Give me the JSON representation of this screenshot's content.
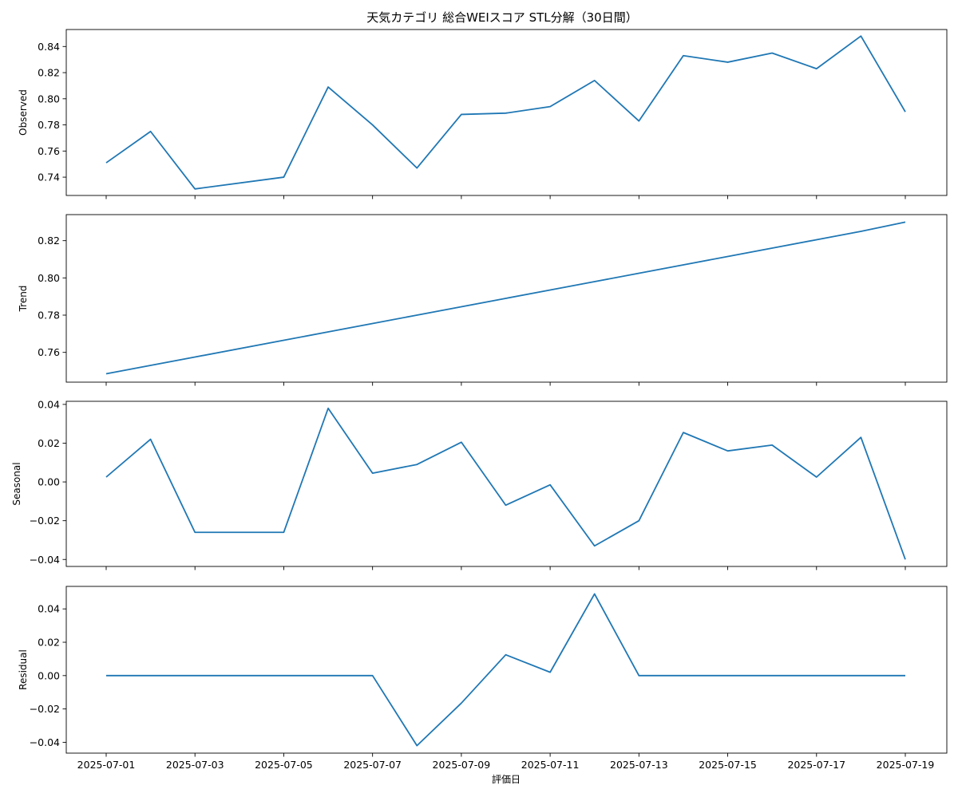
{
  "chart_data": {
    "type": "line",
    "title": "天気カテゴリ 総合WEIスコア STL分解（30日間）",
    "xlabel": "評価日",
    "x": [
      "2025-07-01",
      "2025-07-02",
      "2025-07-03",
      "2025-07-05",
      "2025-07-06",
      "2025-07-07",
      "2025-07-08",
      "2025-07-09",
      "2025-07-10",
      "2025-07-11",
      "2025-07-12",
      "2025-07-13",
      "2025-07-14",
      "2025-07-15",
      "2025-07-16",
      "2025-07-17",
      "2025-07-18",
      "2025-07-19"
    ],
    "x_ticks": [
      "2025-07-01",
      "2025-07-03",
      "2025-07-05",
      "2025-07-07",
      "2025-07-09",
      "2025-07-11",
      "2025-07-13",
      "2025-07-15",
      "2025-07-17",
      "2025-07-19"
    ],
    "line_color": "#1f77b4",
    "panels": [
      {
        "name": "observed",
        "ylabel": "Observed",
        "ylim": [
          0.726,
          0.853
        ],
        "yticks": [
          0.74,
          0.76,
          0.78,
          0.8,
          0.82,
          0.84
        ],
        "ytick_labels": [
          "0.74",
          "0.76",
          "0.78",
          "0.80",
          "0.82",
          "0.84"
        ],
        "values": [
          0.751,
          0.775,
          0.731,
          0.74,
          0.809,
          0.78,
          0.747,
          0.788,
          0.789,
          0.794,
          0.814,
          0.783,
          0.833,
          0.828,
          0.835,
          0.823,
          0.848,
          0.79
        ]
      },
      {
        "name": "trend",
        "ylabel": "Trend",
        "ylim": [
          0.744,
          0.834
        ],
        "yticks": [
          0.76,
          0.78,
          0.8,
          0.82
        ],
        "ytick_labels": [
          "0.76",
          "0.78",
          "0.80",
          "0.82"
        ],
        "values": [
          0.7485,
          0.753,
          0.7575,
          0.7665,
          0.771,
          0.7755,
          0.78,
          0.7845,
          0.789,
          0.7935,
          0.798,
          0.8025,
          0.807,
          0.8115,
          0.816,
          0.8205,
          0.825,
          0.83
        ]
      },
      {
        "name": "seasonal",
        "ylabel": "Seasonal",
        "ylim": [
          -0.0436,
          0.0416
        ],
        "yticks": [
          -0.04,
          -0.02,
          0.0,
          0.02,
          0.04
        ],
        "ytick_labels": [
          "−0.04",
          "−0.02",
          "0.00",
          "0.02",
          "0.04"
        ],
        "values": [
          0.0025,
          0.022,
          -0.026,
          -0.026,
          0.038,
          0.0045,
          0.009,
          0.0205,
          -0.012,
          -0.0015,
          -0.033,
          -0.02,
          0.0255,
          0.016,
          0.019,
          0.0025,
          0.023,
          -0.04
        ]
      },
      {
        "name": "residual",
        "ylabel": "Residual",
        "ylim": [
          -0.0465,
          0.0535
        ],
        "yticks": [
          -0.04,
          -0.02,
          0.0,
          0.02,
          0.04
        ],
        "ytick_labels": [
          "−0.04",
          "−0.02",
          "0.00",
          "0.02",
          "0.04"
        ],
        "values": [
          0.0,
          0.0,
          0.0,
          0.0,
          0.0,
          0.0,
          -0.042,
          -0.0165,
          0.0125,
          0.002,
          0.049,
          0.0,
          0.0,
          0.0,
          0.0,
          0.0,
          0.0,
          0.0
        ]
      }
    ]
  }
}
